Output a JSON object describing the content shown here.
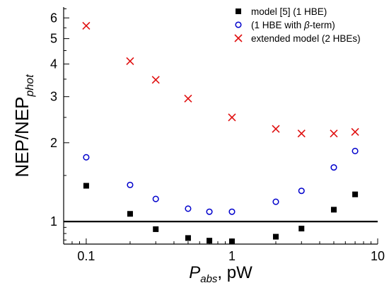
{
  "chart_data": {
    "type": "scatter",
    "xscale": "log",
    "yscale": "log",
    "xlim": [
      0.07,
      10
    ],
    "ylim": [
      0.82,
      6.6
    ],
    "x_ticks": [
      "0.1",
      "1",
      "10"
    ],
    "y_ticks": [
      "1",
      "2",
      "3",
      "4",
      "5",
      "6"
    ],
    "reference_line": {
      "y": 1
    },
    "xlabel": {
      "main": "P",
      "sub": "abs",
      "rest": ", pW"
    },
    "ylabel": {
      "main": "NEP/NEP",
      "sub": "phot"
    },
    "legend_position": "top-right",
    "series": [
      {
        "name": "model [5] (1 HBE)",
        "marker": "filled-square",
        "color": "#000000",
        "x": [
          0.1,
          0.2,
          0.3,
          0.5,
          0.7,
          1,
          2,
          3,
          5,
          7
        ],
        "y": [
          1.37,
          1.07,
          0.935,
          0.865,
          0.845,
          0.84,
          0.875,
          0.94,
          1.11,
          1.27
        ]
      },
      {
        "name_parts": [
          "(1 HBE with ",
          "β",
          "-term)"
        ],
        "marker": "open-circle",
        "color": "#0000cc",
        "x": [
          0.1,
          0.2,
          0.3,
          0.5,
          0.7,
          1,
          2,
          3,
          5,
          7
        ],
        "y": [
          1.76,
          1.38,
          1.22,
          1.12,
          1.09,
          1.09,
          1.19,
          1.31,
          1.61,
          1.86
        ]
      },
      {
        "name": "extended model (2 HBEs)",
        "marker": "x",
        "color": "#e01010",
        "x": [
          0.1,
          0.2,
          0.3,
          0.5,
          0.7,
          1,
          2,
          3,
          5,
          7
        ],
        "y": [
          5.6,
          4.1,
          3.48,
          2.95,
          null,
          2.5,
          2.26,
          2.17,
          2.17,
          2.2
        ]
      }
    ]
  }
}
